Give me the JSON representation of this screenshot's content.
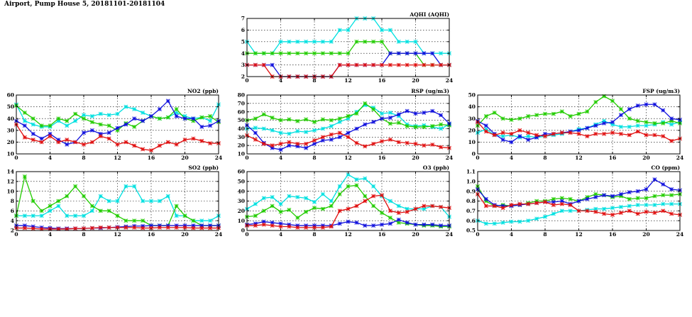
{
  "title": "Airport, Pump House 5, 20181101-20181104",
  "colors": {
    "cyan": "#00e0e0",
    "green": "#22cc00",
    "blue": "#1010dd",
    "red": "#e01010"
  },
  "chart_data": [
    {
      "id": "aqhi",
      "type": "line",
      "title": "AQHI (AQHI)",
      "xlim": [
        0,
        24
      ],
      "ylim": [
        2,
        7
      ],
      "xticks": [
        0,
        4,
        8,
        12,
        16,
        20,
        24
      ],
      "yticks": [
        2,
        3,
        4,
        5,
        6,
        7
      ],
      "xtick_labels": [
        "0",
        "4",
        "8",
        "12",
        "16",
        "20",
        "24"
      ],
      "ytick_labels": [
        "2",
        "3",
        "4",
        "5",
        "6",
        "7"
      ],
      "grid": true,
      "series": [
        {
          "name": "cyan",
          "color": "#00e0e0",
          "values": [
            5,
            4,
            4,
            4,
            5,
            5,
            5,
            5,
            5,
            5,
            5,
            6,
            6,
            7,
            7,
            7,
            6,
            6,
            5,
            5,
            5,
            4,
            4,
            4,
            4
          ]
        },
        {
          "name": "green",
          "color": "#22cc00",
          "values": [
            4,
            4,
            4,
            4,
            4,
            4,
            4,
            4,
            4,
            4,
            4,
            4,
            4,
            5,
            5,
            5,
            5,
            4,
            4,
            4,
            4,
            3,
            3,
            3,
            3
          ]
        },
        {
          "name": "blue",
          "color": "#1010dd",
          "values": [
            3,
            3,
            3,
            3,
            2,
            2,
            2,
            2,
            2,
            2,
            2,
            3,
            3,
            3,
            3,
            3,
            3,
            4,
            4,
            4,
            4,
            4,
            4,
            3,
            3
          ]
        },
        {
          "name": "red",
          "color": "#e01010",
          "values": [
            3,
            3,
            3,
            2,
            2,
            2,
            2,
            2,
            2,
            2,
            2,
            3,
            3,
            3,
            3,
            3,
            3,
            3,
            3,
            3,
            3,
            3,
            3,
            3,
            3
          ]
        }
      ]
    },
    {
      "id": "no2",
      "type": "line",
      "title": "NO2 (ppb)",
      "xlim": [
        0,
        24
      ],
      "ylim": [
        10,
        60
      ],
      "xticks": [
        0,
        4,
        8,
        12,
        16,
        20,
        24
      ],
      "yticks": [
        10,
        20,
        30,
        40,
        50,
        60
      ],
      "xtick_labels": [
        "0",
        "4",
        "8",
        "12",
        "16",
        "20",
        "24"
      ],
      "ytick_labels": [
        "10",
        "20",
        "30",
        "40",
        "50",
        "60"
      ],
      "grid": true,
      "series": [
        {
          "name": "cyan",
          "color": "#00e0e0",
          "values": [
            52,
            38,
            35,
            33,
            33,
            38,
            34,
            38,
            43,
            42,
            44,
            43,
            44,
            50,
            48,
            45,
            42,
            40,
            41,
            45,
            42,
            40,
            41,
            38,
            52
          ]
        },
        {
          "name": "green",
          "color": "#22cc00",
          "values": [
            51,
            45,
            40,
            34,
            34,
            40,
            38,
            44,
            40,
            37,
            35,
            34,
            30,
            36,
            33,
            38,
            42,
            40,
            41,
            48,
            40,
            38,
            41,
            42,
            37
          ]
        },
        {
          "name": "blue",
          "color": "#1010dd",
          "values": [
            38,
            34,
            27,
            23,
            27,
            22,
            18,
            20,
            28,
            30,
            27,
            28,
            32,
            35,
            40,
            38,
            42,
            48,
            55,
            42,
            40,
            40,
            33,
            34,
            38
          ]
        },
        {
          "name": "red",
          "color": "#e01010",
          "values": [
            35,
            24,
            22,
            20,
            25,
            20,
            22,
            20,
            18,
            20,
            25,
            23,
            18,
            20,
            17,
            14,
            13,
            17,
            20,
            18,
            22,
            23,
            21,
            19,
            19
          ]
        }
      ]
    },
    {
      "id": "rsp",
      "type": "line",
      "title": "RSP (ug/m3)",
      "xlim": [
        0,
        24
      ],
      "ylim": [
        10,
        80
      ],
      "xticks": [
        0,
        4,
        8,
        12,
        16,
        20,
        24
      ],
      "yticks": [
        10,
        20,
        30,
        40,
        50,
        60,
        70,
        80
      ],
      "xtick_labels": [
        "0",
        "4",
        "8",
        "12",
        "16",
        "20",
        "24"
      ],
      "ytick_labels": [
        "10",
        "20",
        "30",
        "40",
        "50",
        "60",
        "70",
        "80"
      ],
      "grid": true,
      "series": [
        {
          "name": "cyan",
          "color": "#00e0e0",
          "values": [
            40,
            41,
            40,
            38,
            35,
            34,
            37,
            36,
            38,
            40,
            43,
            48,
            52,
            60,
            68,
            65,
            58,
            59,
            55,
            45,
            43,
            44,
            42,
            40,
            45
          ]
        },
        {
          "name": "green",
          "color": "#22cc00",
          "values": [
            50,
            52,
            57,
            53,
            50,
            51,
            49,
            51,
            48,
            51,
            50,
            52,
            55,
            58,
            70,
            63,
            52,
            46,
            47,
            43,
            42,
            42,
            43,
            45,
            44
          ]
        },
        {
          "name": "blue",
          "color": "#1010dd",
          "values": [
            44,
            35,
            23,
            17,
            15,
            20,
            19,
            17,
            22,
            26,
            27,
            30,
            35,
            40,
            45,
            48,
            52,
            53,
            57,
            61,
            58,
            59,
            61,
            56,
            46
          ]
        },
        {
          "name": "red",
          "color": "#e01010",
          "values": [
            32,
            27,
            22,
            20,
            22,
            24,
            22,
            22,
            26,
            30,
            33,
            35,
            30,
            23,
            19,
            22,
            25,
            27,
            24,
            23,
            22,
            20,
            21,
            18,
            17
          ]
        }
      ]
    },
    {
      "id": "fsp",
      "type": "line",
      "title": "FSP (ug/m3)",
      "xlim": [
        0,
        24
      ],
      "ylim": [
        0,
        50
      ],
      "xticks": [
        0,
        4,
        8,
        12,
        16,
        20,
        24
      ],
      "yticks": [
        0,
        10,
        20,
        30,
        40,
        50
      ],
      "xtick_labels": [
        "0",
        "4",
        "8",
        "12",
        "16",
        "20",
        "24"
      ],
      "ytick_labels": [
        "0",
        "10",
        "20",
        "30",
        "40",
        "50"
      ],
      "grid": true,
      "series": [
        {
          "name": "cyan",
          "color": "#00e0e0",
          "values": [
            18,
            21,
            16,
            15,
            16,
            14,
            15,
            14,
            15,
            16,
            17,
            19,
            21,
            22,
            25,
            28,
            25,
            23,
            23,
            24,
            24,
            25,
            27,
            25,
            27
          ]
        },
        {
          "name": "green",
          "color": "#22cc00",
          "values": [
            24,
            32,
            35,
            30,
            29,
            30,
            32,
            33,
            34,
            34,
            36,
            32,
            34,
            36,
            44,
            49,
            45,
            38,
            30,
            28,
            27,
            26,
            26,
            28,
            26
          ]
        },
        {
          "name": "blue",
          "color": "#1010dd",
          "values": [
            28,
            24,
            17,
            12,
            10,
            15,
            12,
            14,
            17,
            17,
            18,
            19,
            20,
            22,
            24,
            26,
            27,
            33,
            38,
            41,
            42,
            42,
            37,
            30,
            29
          ]
        },
        {
          "name": "red",
          "color": "#e01010",
          "values": [
            27,
            19,
            16,
            18,
            17,
            20,
            18,
            16,
            15,
            17,
            18,
            18,
            17,
            15,
            17,
            17,
            18,
            17,
            16,
            19,
            16,
            16,
            15,
            11,
            13
          ]
        }
      ]
    },
    {
      "id": "so2",
      "type": "line",
      "title": "SO2 (ppb)",
      "xlim": [
        0,
        24
      ],
      "ylim": [
        2,
        14
      ],
      "xticks": [
        0,
        4,
        8,
        12,
        16,
        20,
        24
      ],
      "yticks": [
        2,
        4,
        6,
        8,
        10,
        12,
        14
      ],
      "xtick_labels": [
        "0",
        "4",
        "8",
        "12",
        "16",
        "20",
        "24"
      ],
      "ytick_labels": [
        "2",
        "4",
        "6",
        "8",
        "10",
        "12",
        "14"
      ],
      "grid": true,
      "series": [
        {
          "name": "cyan",
          "color": "#00e0e0",
          "values": [
            5,
            5,
            5,
            5,
            6,
            7,
            5,
            5,
            5,
            6,
            9,
            8,
            8,
            11,
            11,
            8,
            8,
            8,
            9,
            5,
            5,
            4,
            4,
            4,
            5
          ]
        },
        {
          "name": "green",
          "color": "#22cc00",
          "values": [
            5,
            13,
            8,
            6,
            7,
            8,
            9,
            11,
            9,
            7,
            6,
            6,
            5,
            4,
            4,
            4,
            3,
            3,
            3,
            7,
            5,
            4,
            3,
            3,
            3
          ]
        },
        {
          "name": "blue",
          "color": "#1010dd",
          "values": [
            3,
            3,
            2.8,
            2.6,
            2.5,
            2.4,
            2.4,
            2.4,
            2.4,
            2.5,
            2.5,
            2.6,
            2.7,
            2.8,
            2.9,
            2.9,
            3,
            3,
            3,
            3,
            3,
            3,
            3,
            3,
            3
          ]
        },
        {
          "name": "red",
          "color": "#e01010",
          "values": [
            2.5,
            2.5,
            2.4,
            2.3,
            2.3,
            2.3,
            2.3,
            2.4,
            2.4,
            2.5,
            2.6,
            2.6,
            2.6,
            2.6,
            2.6,
            2.5,
            2.5,
            2.6,
            2.6,
            2.6,
            2.6,
            2.5,
            2.5,
            2.5,
            2.5
          ]
        }
      ]
    },
    {
      "id": "o3",
      "type": "line",
      "title": "O3 (ppb)",
      "xlim": [
        0,
        24
      ],
      "ylim": [
        0,
        60
      ],
      "xticks": [
        0,
        4,
        8,
        12,
        16,
        20,
        24
      ],
      "yticks": [
        0,
        10,
        20,
        30,
        40,
        50,
        60
      ],
      "xtick_labels": [
        "0",
        "4",
        "8",
        "12",
        "16",
        "20",
        "24"
      ],
      "ytick_labels": [
        "0",
        "10",
        "20",
        "30",
        "40",
        "50",
        "60"
      ],
      "grid": true,
      "series": [
        {
          "name": "cyan",
          "color": "#00e0e0",
          "values": [
            22,
            27,
            33,
            34,
            27,
            35,
            34,
            33,
            29,
            37,
            30,
            45,
            57,
            52,
            53,
            45,
            35,
            30,
            25,
            22,
            22,
            22,
            25,
            24,
            14
          ]
        },
        {
          "name": "green",
          "color": "#22cc00",
          "values": [
            14,
            15,
            20,
            25,
            19,
            21,
            13,
            19,
            23,
            22,
            25,
            37,
            45,
            46,
            35,
            25,
            18,
            13,
            8,
            7,
            6,
            5,
            5,
            4,
            4
          ]
        },
        {
          "name": "blue",
          "color": "#1010dd",
          "values": [
            6,
            7,
            9,
            8,
            7,
            6,
            5,
            5,
            5,
            5,
            5,
            7,
            9,
            8,
            5,
            5,
            6,
            7,
            11,
            8,
            6,
            6,
            6,
            5,
            5
          ]
        },
        {
          "name": "red",
          "color": "#e01010",
          "values": [
            5,
            5,
            6,
            5,
            4,
            4,
            3,
            3,
            3,
            3,
            4,
            20,
            22,
            25,
            30,
            35,
            36,
            20,
            18,
            19,
            22,
            25,
            25,
            24,
            23
          ]
        }
      ]
    },
    {
      "id": "co",
      "type": "line",
      "title": "CO (ppm)",
      "xlim": [
        0,
        24
      ],
      "ylim": [
        0.5,
        1.1
      ],
      "xticks": [
        0,
        4,
        8,
        12,
        16,
        20,
        24
      ],
      "yticks": [
        0.5,
        0.6,
        0.7,
        0.8,
        0.9,
        1.0,
        1.1
      ],
      "xtick_labels": [
        "0",
        "4",
        "8",
        "12",
        "16",
        "20",
        "24"
      ],
      "ytick_labels": [
        "0.5",
        "0.6",
        "0.7",
        "0.8",
        "0.9",
        "1.0",
        "1.1"
      ],
      "grid": true,
      "series": [
        {
          "name": "cyan",
          "color": "#00e0e0",
          "values": [
            0.6,
            0.57,
            0.57,
            0.58,
            0.59,
            0.59,
            0.6,
            0.62,
            0.64,
            0.67,
            0.7,
            0.7,
            0.7,
            0.71,
            0.72,
            0.72,
            0.73,
            0.74,
            0.75,
            0.76,
            0.76,
            0.76,
            0.77,
            0.77,
            0.77
          ]
        },
        {
          "name": "green",
          "color": "#22cc00",
          "values": [
            0.95,
            0.8,
            0.75,
            0.76,
            0.75,
            0.76,
            0.78,
            0.8,
            0.8,
            0.82,
            0.83,
            0.82,
            0.8,
            0.84,
            0.87,
            0.86,
            0.84,
            0.85,
            0.82,
            0.83,
            0.83,
            0.85,
            0.86,
            0.86,
            0.87
          ]
        },
        {
          "name": "blue",
          "color": "#1010dd",
          "values": [
            0.92,
            0.82,
            0.76,
            0.75,
            0.75,
            0.76,
            0.77,
            0.78,
            0.79,
            0.79,
            0.8,
            0.77,
            0.8,
            0.82,
            0.84,
            0.86,
            0.85,
            0.87,
            0.89,
            0.9,
            0.92,
            1.02,
            0.97,
            0.92,
            0.91
          ]
        },
        {
          "name": "red",
          "color": "#e01010",
          "values": [
            0.87,
            0.75,
            0.75,
            0.73,
            0.76,
            0.77,
            0.77,
            0.78,
            0.79,
            0.76,
            0.77,
            0.76,
            0.7,
            0.7,
            0.69,
            0.67,
            0.66,
            0.68,
            0.7,
            0.67,
            0.69,
            0.68,
            0.7,
            0.67,
            0.66
          ]
        }
      ]
    }
  ]
}
